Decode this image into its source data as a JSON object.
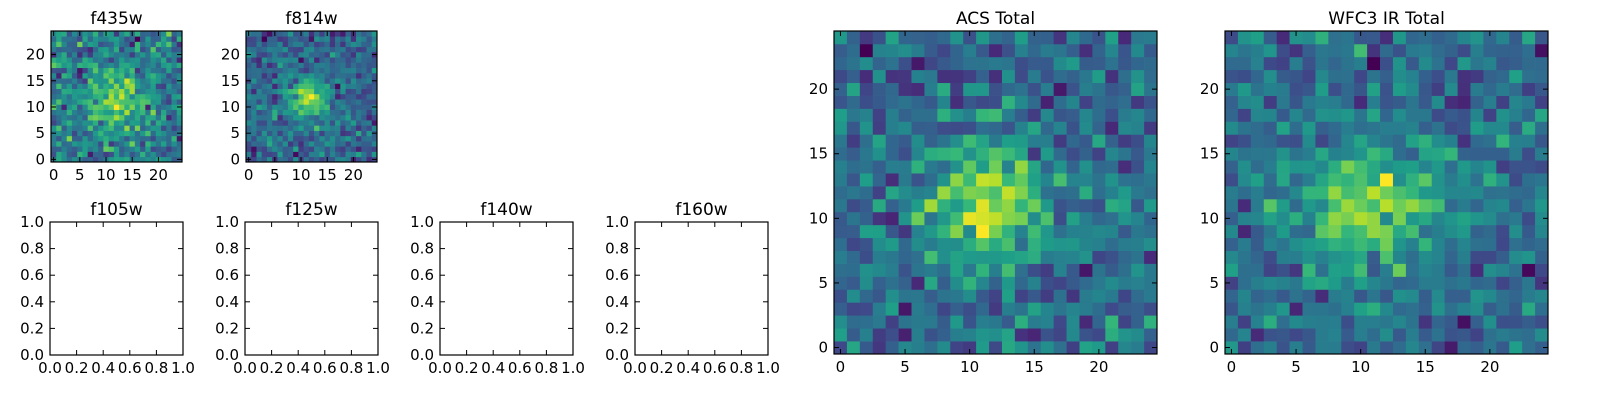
{
  "chart_data": [
    {
      "type": "heatmap",
      "title": "f435w",
      "xlabel": "",
      "ylabel": "",
      "xlim": [
        -0.5,
        24.5
      ],
      "ylim": [
        -0.5,
        24.5
      ],
      "xticks": [
        "0",
        "5",
        "10",
        "15",
        "20"
      ],
      "yticks": [
        "0",
        "5",
        "10",
        "15",
        "20"
      ],
      "grid": false,
      "colormap": "viridis",
      "image": {
        "width": 25,
        "height": 25,
        "center": [
          11.5,
          11.0
        ],
        "peak": [
          13.5,
          14.0
        ],
        "sigma": 3.6,
        "noise": 0.34,
        "seed": 11
      }
    },
    {
      "type": "heatmap",
      "title": "f814w",
      "xlabel": "",
      "ylabel": "",
      "xlim": [
        -0.5,
        24.5
      ],
      "ylim": [
        -0.5,
        24.5
      ],
      "xticks": [
        "0",
        "5",
        "10",
        "15",
        "20"
      ],
      "yticks": [
        "0",
        "5",
        "10",
        "15",
        "20"
      ],
      "grid": false,
      "colormap": "viridis",
      "image": {
        "width": 25,
        "height": 25,
        "center": [
          11.0,
          11.5
        ],
        "peak": [
          12.0,
          12.0
        ],
        "sigma": 3.0,
        "noise": 0.24,
        "seed": 23
      }
    },
    {
      "type": "scatter",
      "title": "f105w",
      "xlabel": "",
      "ylabel": "",
      "xlim": [
        0.0,
        1.0
      ],
      "ylim": [
        0.0,
        1.0
      ],
      "xticks": [
        "0.0",
        "0.2",
        "0.4",
        "0.6",
        "0.8",
        "1.0"
      ],
      "yticks": [
        "0.0",
        "0.2",
        "0.4",
        "0.6",
        "0.8",
        "1.0"
      ],
      "grid": false,
      "x": [],
      "y": []
    },
    {
      "type": "scatter",
      "title": "f125w",
      "xlabel": "",
      "ylabel": "",
      "xlim": [
        0.0,
        1.0
      ],
      "ylim": [
        0.0,
        1.0
      ],
      "xticks": [
        "0.0",
        "0.2",
        "0.4",
        "0.6",
        "0.8",
        "1.0"
      ],
      "yticks": [
        "0.0",
        "0.2",
        "0.4",
        "0.6",
        "0.8",
        "1.0"
      ],
      "grid": false,
      "x": [],
      "y": []
    },
    {
      "type": "scatter",
      "title": "f140w",
      "xlabel": "",
      "ylabel": "",
      "xlim": [
        0.0,
        1.0
      ],
      "ylim": [
        0.0,
        1.0
      ],
      "xticks": [
        "0.0",
        "0.2",
        "0.4",
        "0.6",
        "0.8",
        "1.0"
      ],
      "yticks": [
        "0.0",
        "0.2",
        "0.4",
        "0.6",
        "0.8",
        "1.0"
      ],
      "grid": false,
      "x": [],
      "y": []
    },
    {
      "type": "scatter",
      "title": "f160w",
      "xlabel": "",
      "ylabel": "",
      "xlim": [
        0.0,
        1.0
      ],
      "ylim": [
        0.0,
        1.0
      ],
      "xticks": [
        "0.0",
        "0.2",
        "0.4",
        "0.6",
        "0.8",
        "1.0"
      ],
      "yticks": [
        "0.0",
        "0.2",
        "0.4",
        "0.6",
        "0.8",
        "1.0"
      ],
      "grid": false,
      "x": [],
      "y": []
    },
    {
      "type": "heatmap",
      "title": "ACS Total",
      "xlabel": "",
      "ylabel": "",
      "xlim": [
        -0.5,
        24.5
      ],
      "ylim": [
        -0.5,
        24.5
      ],
      "xticks": [
        "0",
        "5",
        "10",
        "15",
        "20"
      ],
      "yticks": [
        "0",
        "5",
        "10",
        "15",
        "20"
      ],
      "grid": false,
      "colormap": "viridis",
      "image": {
        "width": 25,
        "height": 25,
        "center": [
          11.0,
          10.5
        ],
        "peak": [
          14.0,
          13.5
        ],
        "sigma": 3.4,
        "noise": 0.26,
        "seed": 37
      }
    },
    {
      "type": "heatmap",
      "title": "WFC3 IR Total",
      "xlabel": "",
      "ylabel": "",
      "xlim": [
        -0.5,
        24.5
      ],
      "ylim": [
        -0.5,
        24.5
      ],
      "xticks": [
        "0",
        "5",
        "10",
        "15",
        "20"
      ],
      "yticks": [
        "0",
        "5",
        "10",
        "15",
        "20"
      ],
      "grid": false,
      "colormap": "viridis",
      "image": {
        "width": 25,
        "height": 25,
        "center": [
          10.0,
          10.5
        ],
        "peak": [
          14.5,
          12.5
        ],
        "sigma": 3.3,
        "noise": 0.24,
        "seed": 53
      }
    }
  ]
}
